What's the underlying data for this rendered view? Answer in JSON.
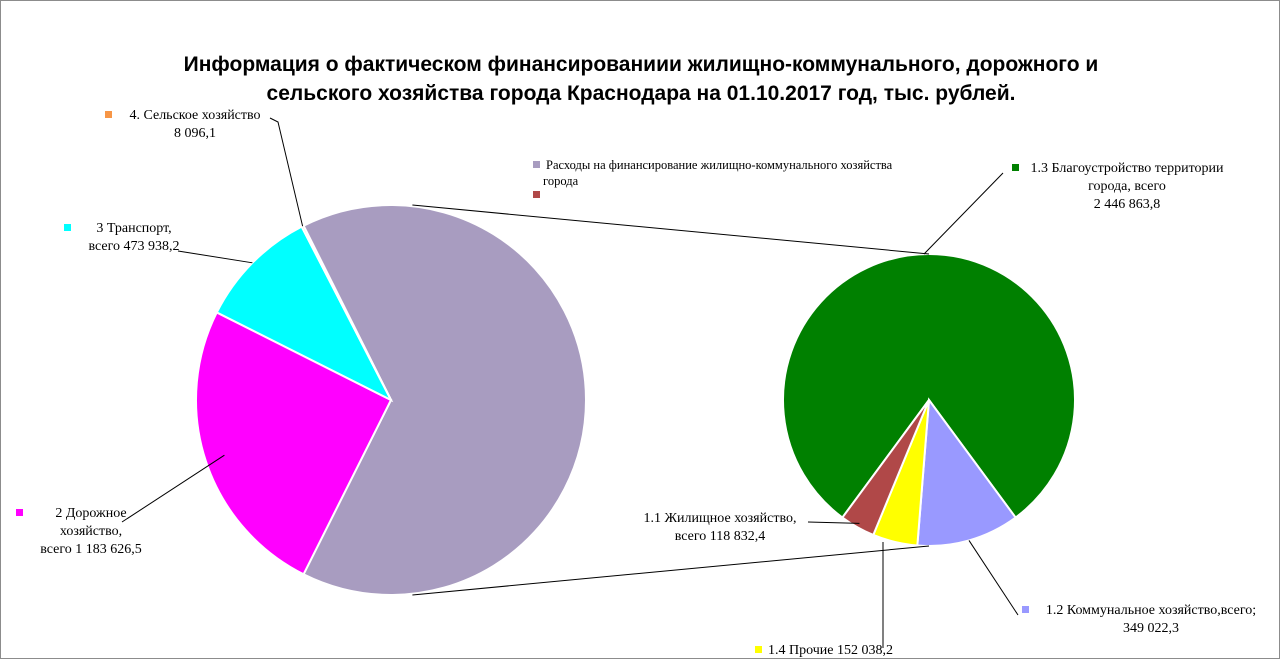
{
  "chart_data": {
    "type": "bar-of-pie",
    "title_line1": "Информация о фактическом финансированиии жилищно-коммунального, дорожного и",
    "title_line2": "сельского хозяйства города Краснодара на 01.10.2017 год, тыс. рублей.",
    "main_pie": {
      "slices": [
        {
          "key": "housing",
          "value": 3066756.7,
          "color": "#a89cc0"
        },
        {
          "key": "road",
          "value": 1183626.5,
          "color": "#ff00ff",
          "label_lines": [
            "2 Дорожное",
            "хозяйство,",
            "всего 1 183 626,5"
          ]
        },
        {
          "key": "transport",
          "value": 473938.2,
          "color": "#00ffff",
          "label_lines": [
            "3 Транспорт,",
            "всего 473 938,2"
          ]
        },
        {
          "key": "agri",
          "value": 8096.1,
          "color": "#f79646",
          "label_lines": [
            "4. Сельское хозяйство",
            "8 096,1"
          ]
        }
      ]
    },
    "sub_pie": {
      "slices": [
        {
          "key": "improvement",
          "value": 2446863.8,
          "color": "#008000",
          "label_lines": [
            "1.3 Благоустройство территории",
            "города, всего",
            "2 446 863,8"
          ]
        },
        {
          "key": "communal",
          "value": 349022.3,
          "color": "#9999ff",
          "label_lines": [
            "1.2 Коммунальное хозяйство,всего;",
            "349 022,3"
          ]
        },
        {
          "key": "other",
          "value": 152038.2,
          "color": "#ffff00",
          "label_lines": [
            "1.4 Прочие 152 038,2"
          ]
        },
        {
          "key": "residential",
          "value": 118832.4,
          "color": "#b04848",
          "label_lines": [
            "1.1 Жилищное хозяйство,",
            "всего 118 832,4"
          ]
        }
      ]
    },
    "legend": [
      {
        "text": "Расходы на финансирование жилищно-коммунального  хозяйства",
        "text2": "города",
        "color": "#a89cc0"
      },
      {
        "text": "",
        "color": "#b04848"
      }
    ]
  }
}
